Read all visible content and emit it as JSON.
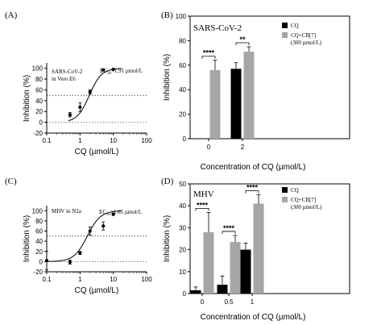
{
  "labels": {
    "A": "(A)",
    "B": "(B)",
    "C": "(C)",
    "D": "(D)"
  },
  "chart_data": [
    {
      "panel": "A",
      "type": "scatter",
      "title": "",
      "annotation": [
        "SARS-CoV-2",
        "in Vero E6"
      ],
      "ec50_text": "EC",
      "ec50_sub": "50",
      "ec50_value": "=1.91 µmol/L",
      "xlabel": "CQ (µmol/L)",
      "ylabel": "Inhibition (%)",
      "xscale": "log",
      "xlim": [
        0.1,
        100
      ],
      "ylim": [
        -20,
        110
      ],
      "xticks": [
        0.1,
        1,
        10,
        100
      ],
      "xtick_labels": [
        "0.1",
        "1",
        "10",
        "100"
      ],
      "yticks": [
        -20,
        0,
        20,
        40,
        60,
        80,
        100
      ],
      "ytick_labels": [
        "-20",
        "0",
        "20",
        "40",
        "60",
        "80",
        "100"
      ],
      "reference_lines": [
        0,
        50
      ],
      "x": [
        0.5,
        1,
        2,
        5,
        10
      ],
      "y": [
        14,
        28,
        56,
        97,
        98
      ],
      "error": [
        4,
        8,
        4,
        2,
        1
      ],
      "fit": {
        "bottom": 0,
        "top": 100,
        "ec50": 1.91,
        "hill": 2.4
      }
    },
    {
      "panel": "B",
      "type": "bar",
      "title": "SARS-CoV-2",
      "xlabel": "Concentration of CQ (µmol/L)",
      "ylabel": "Inhibition (%)",
      "ylim": [
        0,
        100
      ],
      "yticks": [
        0,
        20,
        40,
        60,
        80,
        100
      ],
      "ytick_labels": [
        "0",
        "20",
        "40",
        "60",
        "80",
        "100"
      ],
      "categories": [
        "0",
        "2"
      ],
      "legend": [
        "CQ",
        "CQ+CB[7]",
        "(300 µmol/L)"
      ],
      "series": [
        {
          "name": "CQ",
          "color": "#000000",
          "values": [
            null,
            57
          ],
          "error": [
            null,
            5
          ]
        },
        {
          "name": "CQ+CB[7]",
          "color": "#a6a6a6",
          "values": [
            56,
            71
          ],
          "error": [
            8,
            4
          ]
        }
      ],
      "significance": [
        {
          "category": "0",
          "label": "****"
        },
        {
          "category": "2",
          "label": "**"
        }
      ]
    },
    {
      "panel": "C",
      "type": "scatter",
      "title": "",
      "annotation": [
        "MHV in N2a"
      ],
      "ec50_text": "EC",
      "ec50_sub": "50",
      "ec50_value": "=1.65 µmol/L",
      "xlabel": "CQ (µmol/L)",
      "ylabel": "Inhibition (%)",
      "xscale": "log",
      "xlim": [
        0.1,
        100
      ],
      "ylim": [
        -20,
        110
      ],
      "xticks": [
        0.1,
        1,
        10,
        100
      ],
      "xtick_labels": [
        "0.1",
        "1",
        "10",
        "100"
      ],
      "yticks": [
        -20,
        0,
        20,
        40,
        60,
        80,
        100
      ],
      "ytick_labels": [
        "-20",
        "0",
        "20",
        "40",
        "60",
        "80",
        "100"
      ],
      "reference_lines": [
        0,
        50
      ],
      "x": [
        0.1,
        0.5,
        1,
        2,
        5,
        10
      ],
      "y": [
        2,
        -1,
        17,
        60,
        70,
        93
      ],
      "error": [
        18,
        4,
        3,
        8,
        8,
        2
      ],
      "fit": {
        "bottom": 0,
        "top": 100,
        "ec50": 1.65,
        "hill": 2.2
      }
    },
    {
      "panel": "D",
      "type": "bar",
      "title": "MHV",
      "xlabel": "Concentration of CQ (µmol/L)",
      "ylabel": "Inhibition (%)",
      "ylim": [
        0,
        50
      ],
      "yticks": [
        0,
        10,
        20,
        30,
        40,
        50
      ],
      "ytick_labels": [
        "0",
        "10",
        "20",
        "30",
        "40",
        "50"
      ],
      "categories": [
        "0",
        "0.5",
        "1"
      ],
      "legend": [
        "CQ",
        "CQ+CB[7]",
        "(300 µmol/L)"
      ],
      "series": [
        {
          "name": "CQ",
          "color": "#000000",
          "values": [
            1.5,
            4,
            20
          ],
          "error": [
            1.5,
            4,
            3
          ]
        },
        {
          "name": "CQ+CB[7]",
          "color": "#a6a6a6",
          "values": [
            28,
            23.5,
            41
          ],
          "error": [
            9,
            3,
            4
          ]
        }
      ],
      "significance": [
        {
          "category": "0",
          "label": "****"
        },
        {
          "category": "0.5",
          "label": "****"
        },
        {
          "category": "1",
          "label": "****"
        }
      ]
    }
  ]
}
